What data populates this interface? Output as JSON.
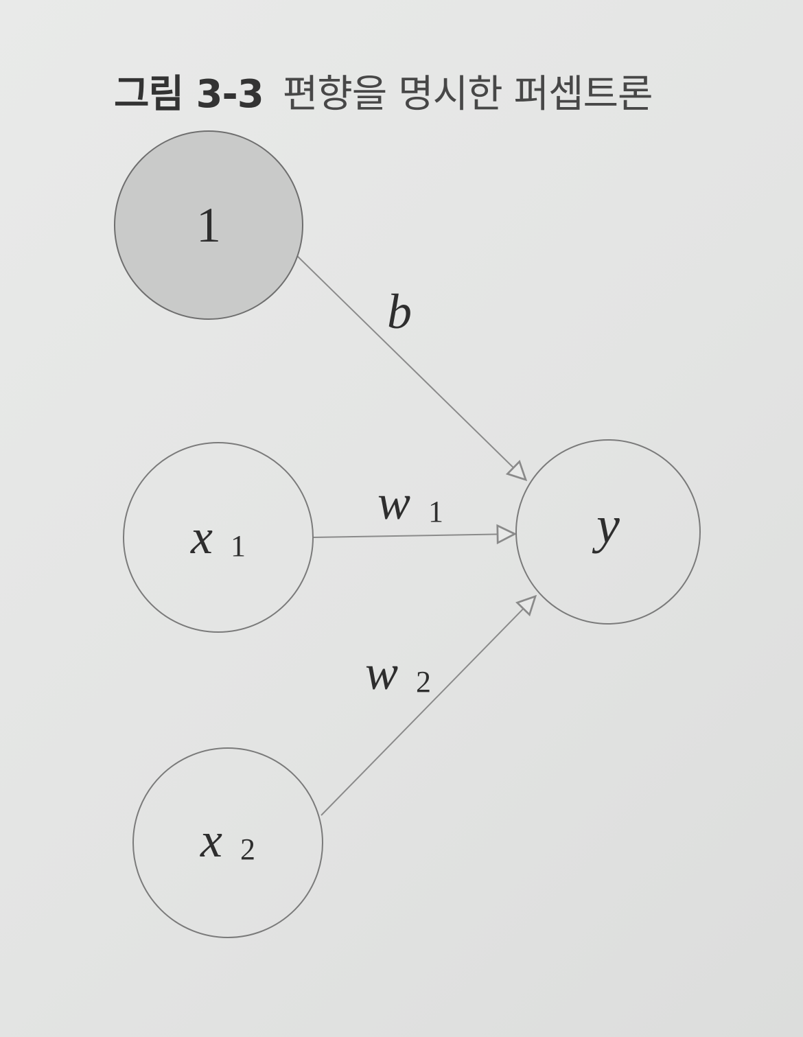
{
  "caption": {
    "number": "그림 3-3",
    "text": "편향을 명시한 퍼셉트론"
  },
  "nodes": {
    "bias": {
      "label": "1"
    },
    "x1": {
      "label": "x",
      "sub": "1"
    },
    "x2": {
      "label": "x",
      "sub": "2"
    },
    "y": {
      "label": "y"
    }
  },
  "edges": {
    "bias_to_y": {
      "label": "b"
    },
    "x1_to_y": {
      "label": "w",
      "sub": "1"
    },
    "x2_to_y": {
      "label": "w",
      "sub": "2"
    }
  },
  "colors": {
    "bias_fill": "#c9cac9",
    "node_stroke": "#7a7a7a",
    "edge_stroke": "#8a8a8a"
  }
}
